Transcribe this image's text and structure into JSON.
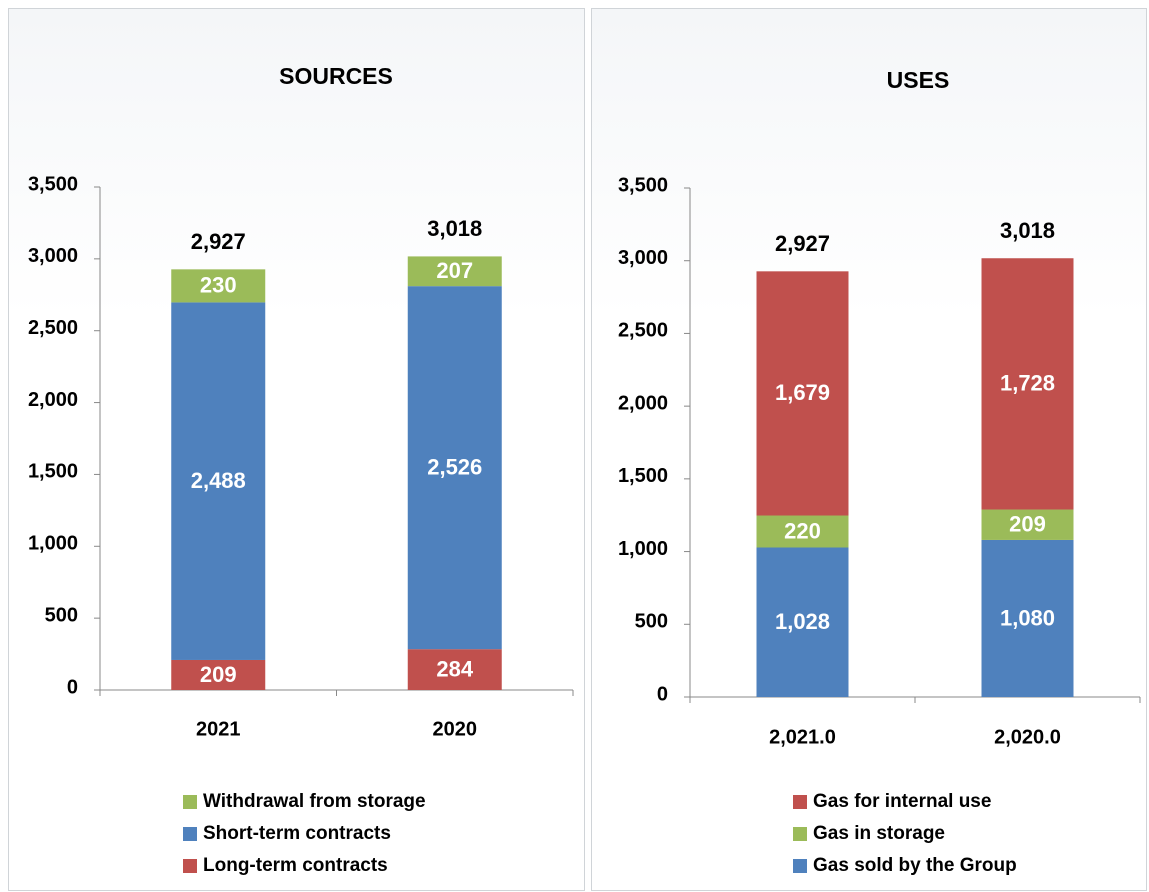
{
  "chart_data": [
    {
      "type": "bar",
      "stacked": true,
      "title": "SOURCES",
      "categories": [
        "2021",
        "2020"
      ],
      "series": [
        {
          "name": "Long-term contracts",
          "color": "#c0504d",
          "values": [
            209,
            284
          ],
          "value_labels": [
            "209",
            "284"
          ]
        },
        {
          "name": "Short-term contracts",
          "color": "#4f81bd",
          "values": [
            2488,
            2526
          ],
          "value_labels": [
            "2,488",
            "2,526"
          ]
        },
        {
          "name": "Withdrawal from storage",
          "color": "#9bbb59",
          "values": [
            230,
            207
          ],
          "value_labels": [
            "230",
            "207"
          ]
        }
      ],
      "totals": [
        2927,
        3018
      ],
      "total_labels": [
        "2,927",
        "3,018"
      ],
      "ylim": [
        0,
        3500
      ],
      "yticks": [
        0,
        500,
        {
          "value": 1000,
          "label": "1,000"
        },
        {
          "value": 1500,
          "label": "1,500"
        },
        {
          "value": 2000,
          "label": "2,000"
        },
        {
          "value": 2500,
          "label": "2,500"
        },
        {
          "value": 3000,
          "label": "3,000"
        },
        {
          "value": 3500,
          "label": "3,500"
        }
      ],
      "legend": "bottom"
    },
    {
      "type": "bar",
      "stacked": true,
      "title": "USES",
      "categories": [
        "2,021.0",
        "2,020.0"
      ],
      "series": [
        {
          "name": "Gas sold by the Group",
          "color": "#4f81bd",
          "values": [
            1028,
            1080
          ],
          "value_labels": [
            "1,028",
            "1,080"
          ]
        },
        {
          "name": "Gas in storage",
          "color": "#9bbb59",
          "values": [
            220,
            209
          ],
          "value_labels": [
            "220",
            "209"
          ]
        },
        {
          "name": "Gas for internal use",
          "color": "#c0504d",
          "values": [
            1679,
            1728
          ],
          "value_labels": [
            "1,679",
            "1,728"
          ]
        }
      ],
      "totals": [
        2927,
        3018
      ],
      "total_labels": [
        "2,927",
        "3,018"
      ],
      "ylim": [
        0,
        3500
      ],
      "yticks": [
        0,
        500,
        {
          "value": 1000,
          "label": "1,000"
        },
        {
          "value": 1500,
          "label": "1,500"
        },
        {
          "value": 2000,
          "label": "2,000"
        },
        {
          "value": 2500,
          "label": "2,500"
        },
        {
          "value": 3000,
          "label": "3,000"
        },
        {
          "value": 3500,
          "label": "3,500"
        }
      ],
      "legend": "bottom"
    }
  ]
}
